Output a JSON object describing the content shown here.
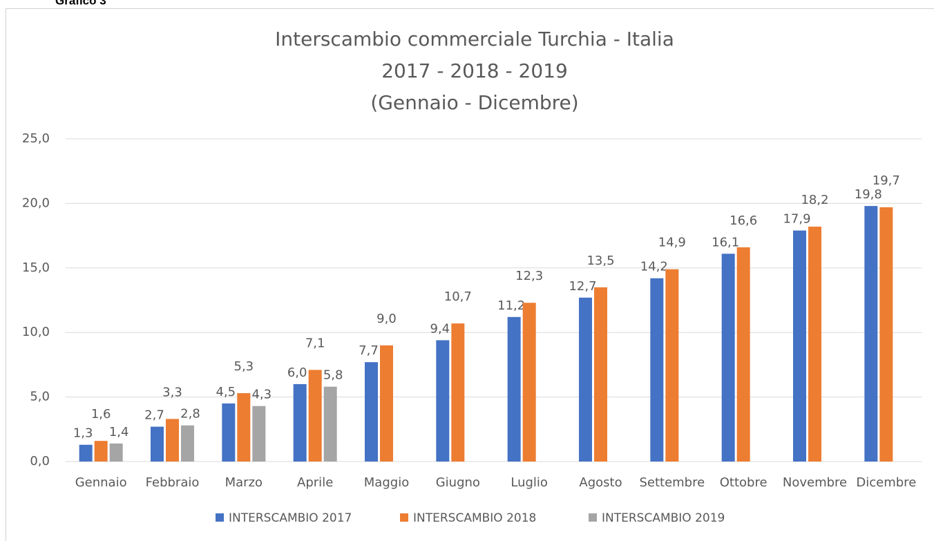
{
  "caption": "Grafico 3",
  "chart_data": {
    "type": "bar",
    "title": [
      "Interscambio commerciale Turchia - Italia",
      "2017  - 2018 - 2019",
      "(Gennaio - Dicembre)"
    ],
    "categories": [
      "Gennaio",
      "Febbraio",
      "Marzo",
      "Aprile",
      "Maggio",
      "Giugno",
      "Luglio",
      "Agosto",
      "Settembre",
      "Ottobre",
      "Novembre",
      "Dicembre"
    ],
    "series": [
      {
        "name": "INTERSCAMBIO 2017",
        "color": "#4472c4",
        "values": [
          1.3,
          2.7,
          4.5,
          6.0,
          7.7,
          9.4,
          11.2,
          12.7,
          14.2,
          16.1,
          17.9,
          19.8
        ],
        "value_labels": [
          "1,3",
          "2,7",
          "4,5",
          "6,0",
          "7,7",
          "9,4",
          "11,2",
          "12,7",
          "14,2",
          "16,1",
          "17,9",
          "19,8"
        ]
      },
      {
        "name": "INTERSCAMBIO 2018",
        "color": "#ed7d31",
        "values": [
          1.6,
          3.3,
          5.3,
          7.1,
          9.0,
          10.7,
          12.3,
          13.5,
          14.9,
          16.6,
          18.2,
          19.7
        ],
        "value_labels": [
          "1,6",
          "3,3",
          "5,3",
          "7,1",
          "9,0",
          "10,7",
          "12,3",
          "13,5",
          "14,9",
          "16,6",
          "18,2",
          "19,7"
        ]
      },
      {
        "name": "INTERSCAMBIO 2019",
        "color": "#a5a5a5",
        "values": [
          1.4,
          2.8,
          4.3,
          5.8,
          null,
          null,
          null,
          null,
          null,
          null,
          null,
          null
        ],
        "value_labels": [
          "1,4",
          "2,8",
          "4,3",
          "5,8",
          null,
          null,
          null,
          null,
          null,
          null,
          null,
          null
        ]
      }
    ],
    "ylim": [
      0,
      25
    ],
    "yticks": [
      {
        "value": 0,
        "label": "0,0"
      },
      {
        "value": 5,
        "label": "5,0"
      },
      {
        "value": 10,
        "label": "10,0"
      },
      {
        "value": 15,
        "label": "15,0"
      },
      {
        "value": 20,
        "label": "20,0"
      },
      {
        "value": 25,
        "label": "25,0"
      }
    ],
    "grid": true,
    "legend": "bottom"
  }
}
